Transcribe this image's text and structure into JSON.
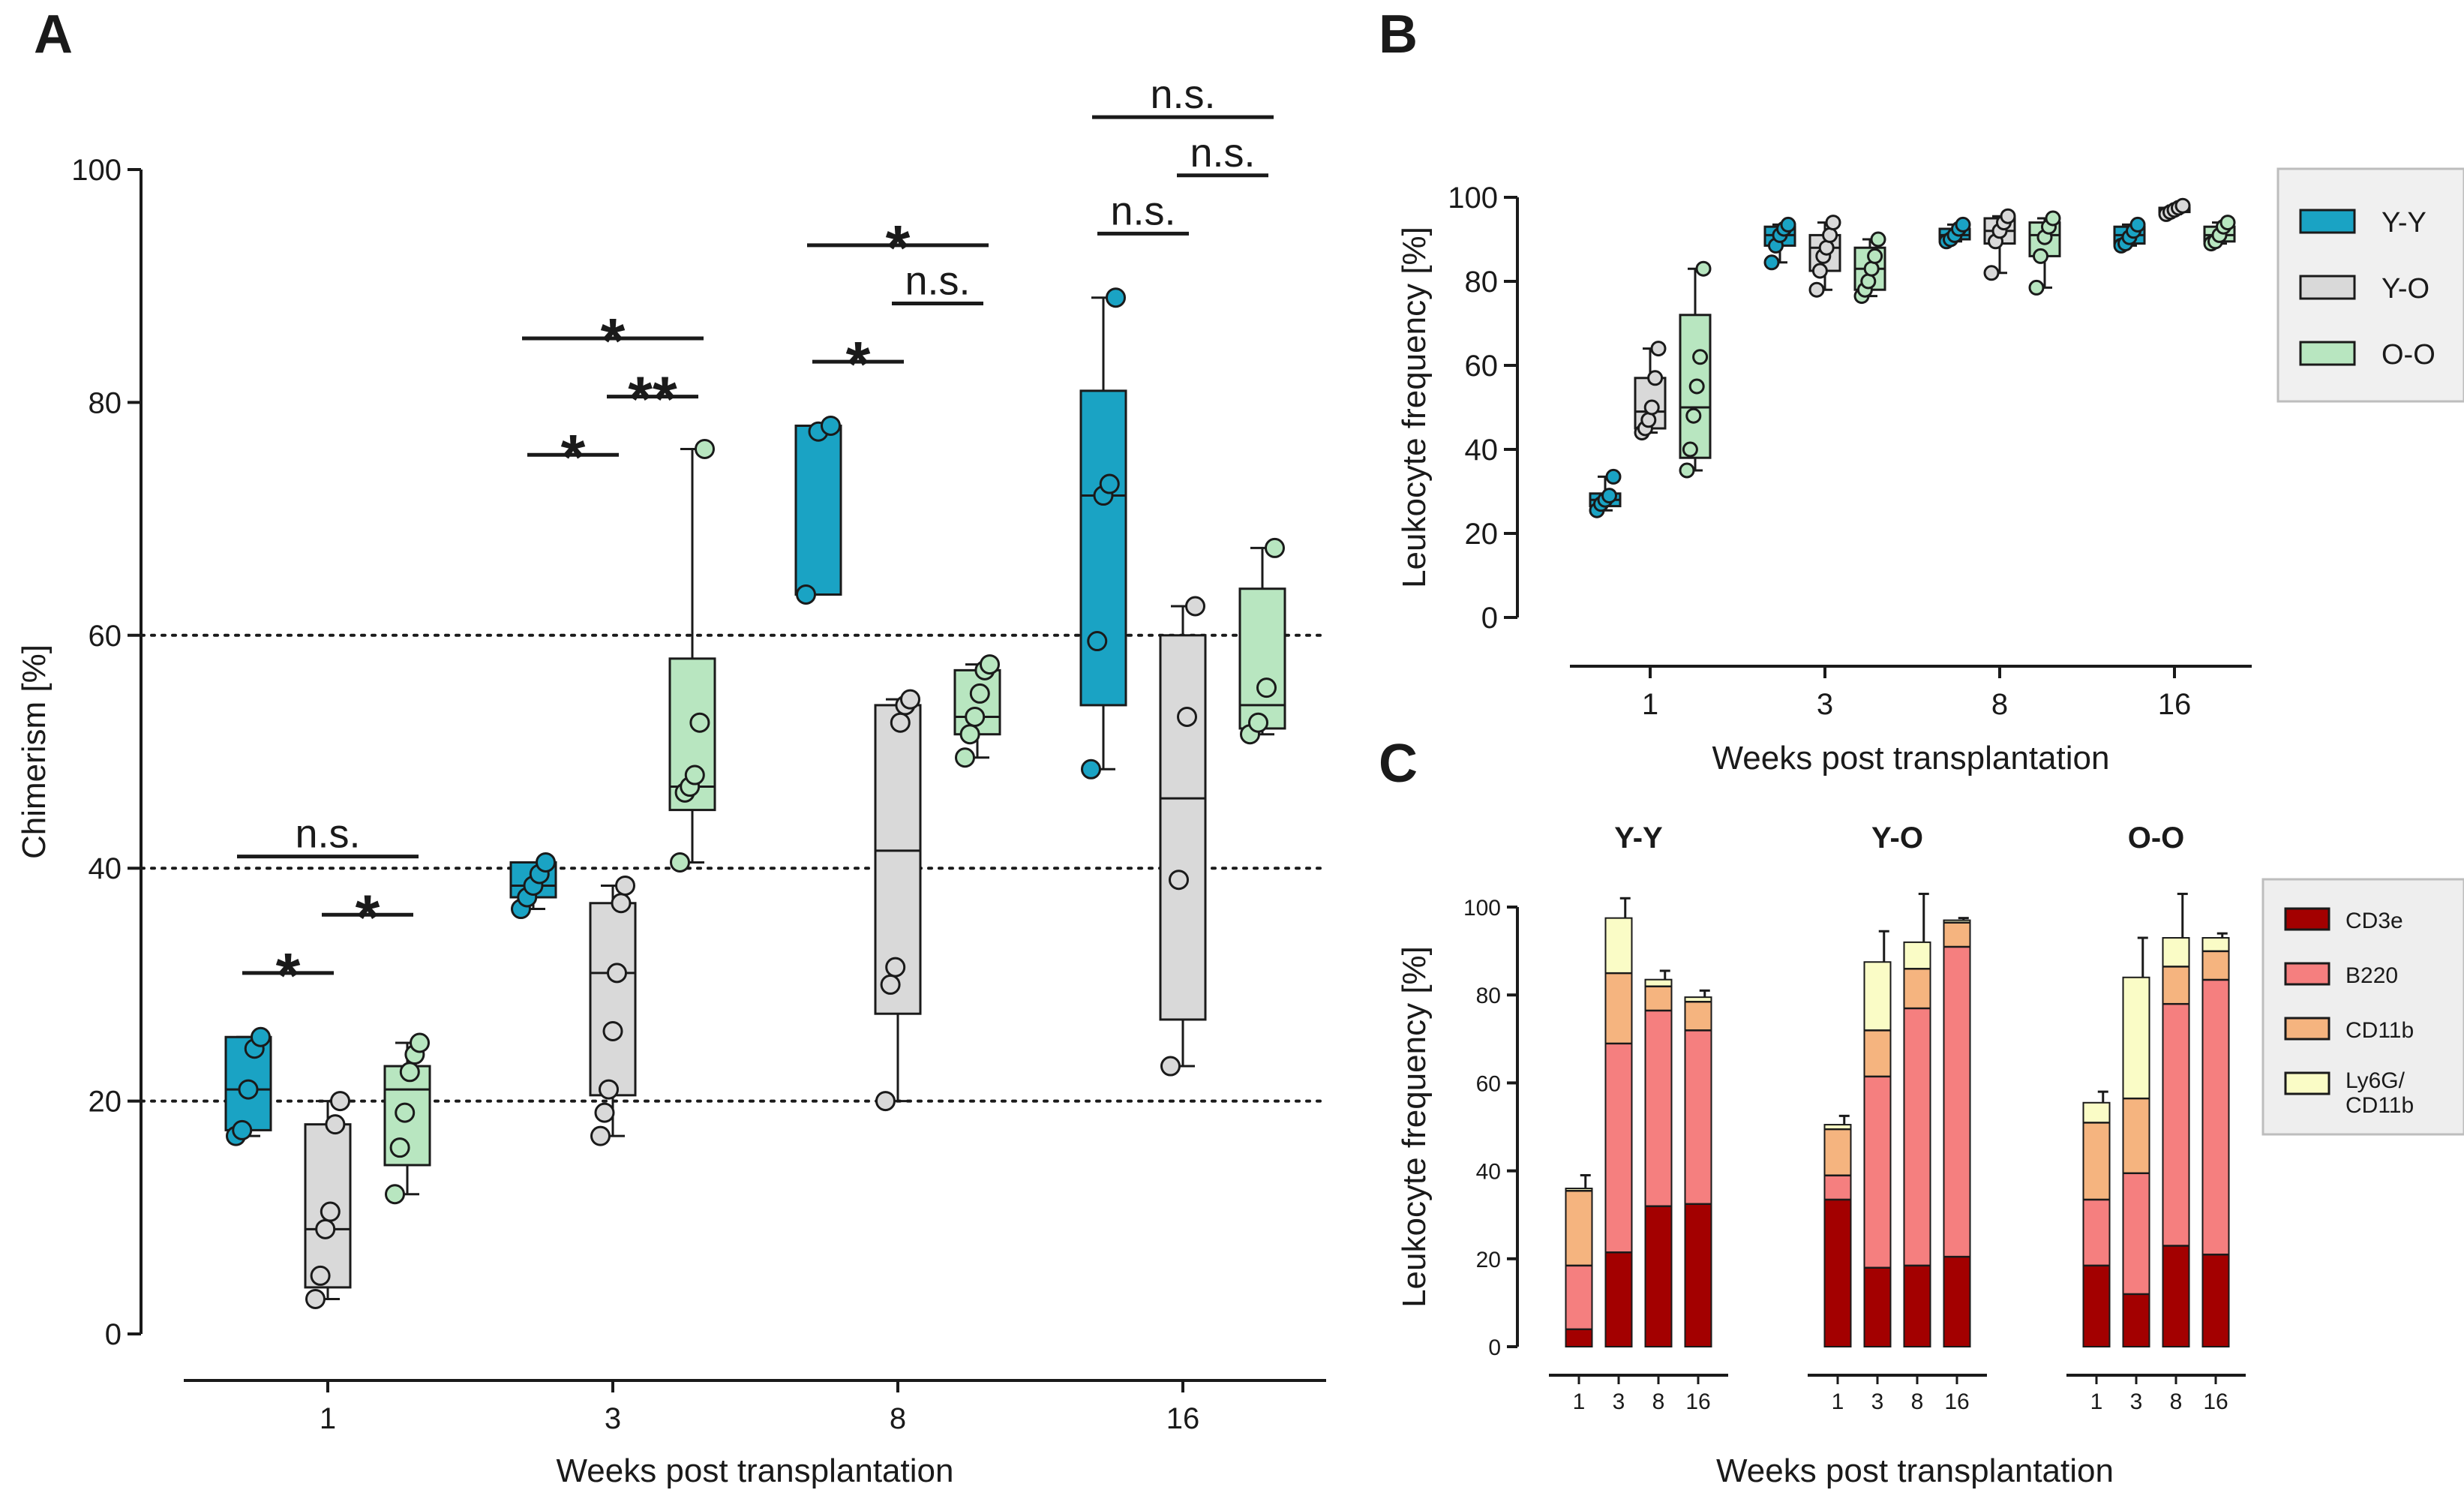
{
  "figure": {
    "panel_labels": [
      "A",
      "B",
      "C"
    ]
  },
  "chart_data": [
    {
      "id": "A",
      "type": "boxplot",
      "ylabel": "Chimerism [%]",
      "xlabel": "Weeks post transplantation",
      "ylim": [
        0,
        100
      ],
      "yticks": [
        0,
        20,
        40,
        60,
        80,
        100
      ],
      "reference_lines": [
        20,
        40,
        60
      ],
      "categories": [
        "1",
        "3",
        "8",
        "16"
      ],
      "series": [
        {
          "name": "Y-Y",
          "color": "#1aa3c4",
          "boxes": [
            {
              "min": 17,
              "q1": 17.5,
              "median": 21,
              "q3": 25.5,
              "max": 25.5,
              "points": [
                17,
                17.5,
                21,
                24.5,
                25.5
              ]
            },
            {
              "min": 36.5,
              "q1": 37.5,
              "median": 38.5,
              "q3": 40.5,
              "max": 40.5,
              "points": [
                36.5,
                37.5,
                38.5,
                39.5,
                40.5
              ]
            },
            {
              "min": 63.5,
              "q1": 63.5,
              "median": 78,
              "q3": 78,
              "max": 78,
              "points": [
                63.5,
                77.5,
                78
              ]
            },
            {
              "min": 48.5,
              "q1": 54,
              "median": 72,
              "q3": 81,
              "max": 89,
              "points": [
                48.5,
                59.5,
                72,
                73,
                89
              ]
            }
          ]
        },
        {
          "name": "Y-O",
          "color": "#d9d9d9",
          "boxes": [
            {
              "min": 3,
              "q1": 4,
              "median": 9,
              "q3": 18,
              "max": 20,
              "points": [
                3,
                5,
                9,
                10.5,
                18,
                20
              ]
            },
            {
              "min": 17,
              "q1": 20.5,
              "median": 31,
              "q3": 37,
              "max": 38.5,
              "points": [
                17,
                19,
                21,
                26,
                31,
                37,
                38.5
              ]
            },
            {
              "min": 20,
              "q1": 27.5,
              "median": 41.5,
              "q3": 54,
              "max": 54.5,
              "points": [
                20,
                30,
                31.5,
                52.5,
                54,
                54.5
              ]
            },
            {
              "min": 23,
              "q1": 27,
              "median": 46,
              "q3": 60,
              "max": 62.5,
              "points": [
                23,
                39,
                53,
                62.5
              ]
            }
          ]
        },
        {
          "name": "O-O",
          "color": "#b8e6c0",
          "boxes": [
            {
              "min": 12,
              "q1": 14.5,
              "median": 21,
              "q3": 23,
              "max": 25,
              "points": [
                12,
                16,
                19,
                22.5,
                24,
                25
              ]
            },
            {
              "min": 40.5,
              "q1": 45,
              "median": 47,
              "q3": 58,
              "max": 76,
              "points": [
                40.5,
                46.5,
                47,
                48,
                52.5,
                76
              ]
            },
            {
              "min": 49.5,
              "q1": 51.5,
              "median": 53,
              "q3": 57,
              "max": 57.5,
              "points": [
                49.5,
                51.5,
                53,
                55,
                57,
                57.5
              ]
            },
            {
              "min": 51.5,
              "q1": 52,
              "median": 54,
              "q3": 64,
              "max": 67.5,
              "points": [
                51.5,
                52.5,
                55.5,
                67.5
              ]
            }
          ]
        }
      ],
      "significance": [
        {
          "category": 0,
          "from": 0,
          "to": 1,
          "label": "*",
          "y": 31
        },
        {
          "category": 0,
          "from": 1,
          "to": 2,
          "label": "*",
          "y": 36
        },
        {
          "category": 0,
          "from": 0,
          "to": 2,
          "label": "n.s.",
          "y": 41
        },
        {
          "category": 1,
          "from": 0,
          "to": 1,
          "label": "*",
          "y": 75.5
        },
        {
          "category": 1,
          "from": 1,
          "to": 2,
          "label": "**",
          "y": 80.5
        },
        {
          "category": 1,
          "from": 0,
          "to": 2,
          "label": "*",
          "y": 85.5
        },
        {
          "category": 2,
          "from": 0,
          "to": 1,
          "label": "*",
          "y": 83.5
        },
        {
          "category": 2,
          "from": 1,
          "to": 2,
          "label": "n.s.",
          "y": 88.5
        },
        {
          "category": 2,
          "from": 0,
          "to": 2,
          "label": "*",
          "y": 93.5
        },
        {
          "category": 3,
          "from": 0,
          "to": 1,
          "label": "n.s.",
          "y": 94.5
        },
        {
          "category": 3,
          "from": 1,
          "to": 2,
          "label": "n.s.",
          "y": 99.5
        },
        {
          "category": 3,
          "from": 0,
          "to": 2,
          "label": "n.s.",
          "y": 104.5
        }
      ]
    },
    {
      "id": "B",
      "type": "boxplot",
      "ylabel": "Leukocyte frequency [%]",
      "xlabel": "Weeks post transplantation",
      "ylim": [
        0,
        100
      ],
      "yticks": [
        0,
        20,
        40,
        60,
        80,
        100
      ],
      "categories": [
        "1",
        "3",
        "8",
        "16"
      ],
      "legend": [
        {
          "name": "Y-Y",
          "color": "#1aa3c4"
        },
        {
          "name": "Y-O",
          "color": "#d9d9d9"
        },
        {
          "name": "O-O",
          "color": "#b8e6c0"
        }
      ],
      "series": [
        {
          "name": "Y-Y",
          "color": "#1aa3c4",
          "boxes": [
            {
              "min": 25.5,
              "q1": 26.5,
              "median": 28,
              "q3": 29.5,
              "max": 33.5,
              "points": [
                25.5,
                27,
                28,
                29,
                33.5
              ]
            },
            {
              "min": 84.5,
              "q1": 88.5,
              "median": 91,
              "q3": 93,
              "max": 93.5,
              "points": [
                84.5,
                88.5,
                91,
                92.5,
                93.5
              ]
            },
            {
              "min": 89.5,
              "q1": 90,
              "median": 91,
              "q3": 92.5,
              "max": 93.5,
              "points": [
                89.5,
                90,
                91,
                92.5,
                93.5
              ]
            },
            {
              "min": 88.5,
              "q1": 89,
              "median": 91,
              "q3": 93,
              "max": 93.5,
              "points": [
                88.5,
                89,
                90.5,
                92,
                93.5
              ]
            }
          ]
        },
        {
          "name": "Y-O",
          "color": "#d9d9d9",
          "boxes": [
            {
              "min": 44,
              "q1": 45,
              "median": 49,
              "q3": 57,
              "max": 64,
              "points": [
                44,
                45,
                47,
                50,
                57,
                64
              ]
            },
            {
              "min": 78,
              "q1": 82.5,
              "median": 88,
              "q3": 91,
              "max": 94,
              "points": [
                78,
                82.5,
                86,
                88,
                91,
                94
              ]
            },
            {
              "min": 82,
              "q1": 89,
              "median": 92,
              "q3": 95,
              "max": 95.5,
              "points": [
                82,
                89.5,
                92,
                94,
                95.5
              ]
            },
            {
              "min": 96,
              "q1": 96.5,
              "median": 97,
              "q3": 97.5,
              "max": 98,
              "points": [
                96,
                96.5,
                97,
                97.5,
                98
              ]
            }
          ]
        },
        {
          "name": "O-O",
          "color": "#b8e6c0",
          "boxes": [
            {
              "min": 35,
              "q1": 38,
              "median": 50,
              "q3": 72,
              "max": 83,
              "points": [
                35,
                40,
                48,
                55,
                62,
                83
              ]
            },
            {
              "min": 76.5,
              "q1": 78,
              "median": 83,
              "q3": 88,
              "max": 90,
              "points": [
                76.5,
                78,
                80,
                83,
                86,
                90
              ]
            },
            {
              "min": 78.5,
              "q1": 86,
              "median": 91,
              "q3": 94,
              "max": 95,
              "points": [
                78.5,
                86,
                90.5,
                93,
                95
              ]
            },
            {
              "min": 89,
              "q1": 89.5,
              "median": 91,
              "q3": 93,
              "max": 94,
              "points": [
                89,
                89.5,
                91,
                93,
                94
              ]
            }
          ]
        }
      ]
    },
    {
      "id": "C",
      "type": "stacked-bar",
      "ylabel": "Leukocyte frequency [%]",
      "xlabel": "Weeks post transplantation",
      "ylim": [
        0,
        100
      ],
      "yticks": [
        0,
        20,
        40,
        60,
        80,
        100
      ],
      "groups": [
        "Y-Y",
        "Y-O",
        "O-O"
      ],
      "categories": [
        "1",
        "3",
        "8",
        "16"
      ],
      "legend": [
        {
          "name": "CD3e",
          "color": "#a30000"
        },
        {
          "name": "B220",
          "color": "#f57f7f"
        },
        {
          "name": "CD11b",
          "color": "#f5b47f"
        },
        {
          "name": "Ly6G/ CD11b",
          "color": "#fafcc6"
        }
      ],
      "segments": [
        "CD3e",
        "B220",
        "CD11b",
        "Ly6G/ CD11b"
      ],
      "values": {
        "Y-Y": [
          [
            4,
            14.5,
            17,
            0.5
          ],
          [
            21.5,
            47.5,
            16,
            12.5
          ],
          [
            32,
            44.5,
            5.5,
            1.5
          ],
          [
            32.5,
            39.5,
            6.5,
            1
          ]
        ],
        "Y-O": [
          [
            33.5,
            5.5,
            10.5,
            1
          ],
          [
            18,
            43.5,
            10.5,
            15.5
          ],
          [
            18.5,
            58.5,
            9,
            6
          ],
          [
            20.5,
            70.5,
            5.5,
            0.5
          ]
        ],
        "O-O": [
          [
            18.5,
            15,
            17.5,
            4.5
          ],
          [
            12,
            27.5,
            17,
            27.5
          ],
          [
            23,
            55,
            8.5,
            6.5
          ],
          [
            21,
            62.5,
            6.5,
            3
          ]
        ]
      },
      "error_tops": {
        "Y-Y": [
          39,
          102,
          85.5,
          81
        ],
        "Y-O": [
          52.5,
          94.5,
          103,
          97.5
        ],
        "O-O": [
          58,
          93,
          103,
          94
        ]
      }
    }
  ]
}
